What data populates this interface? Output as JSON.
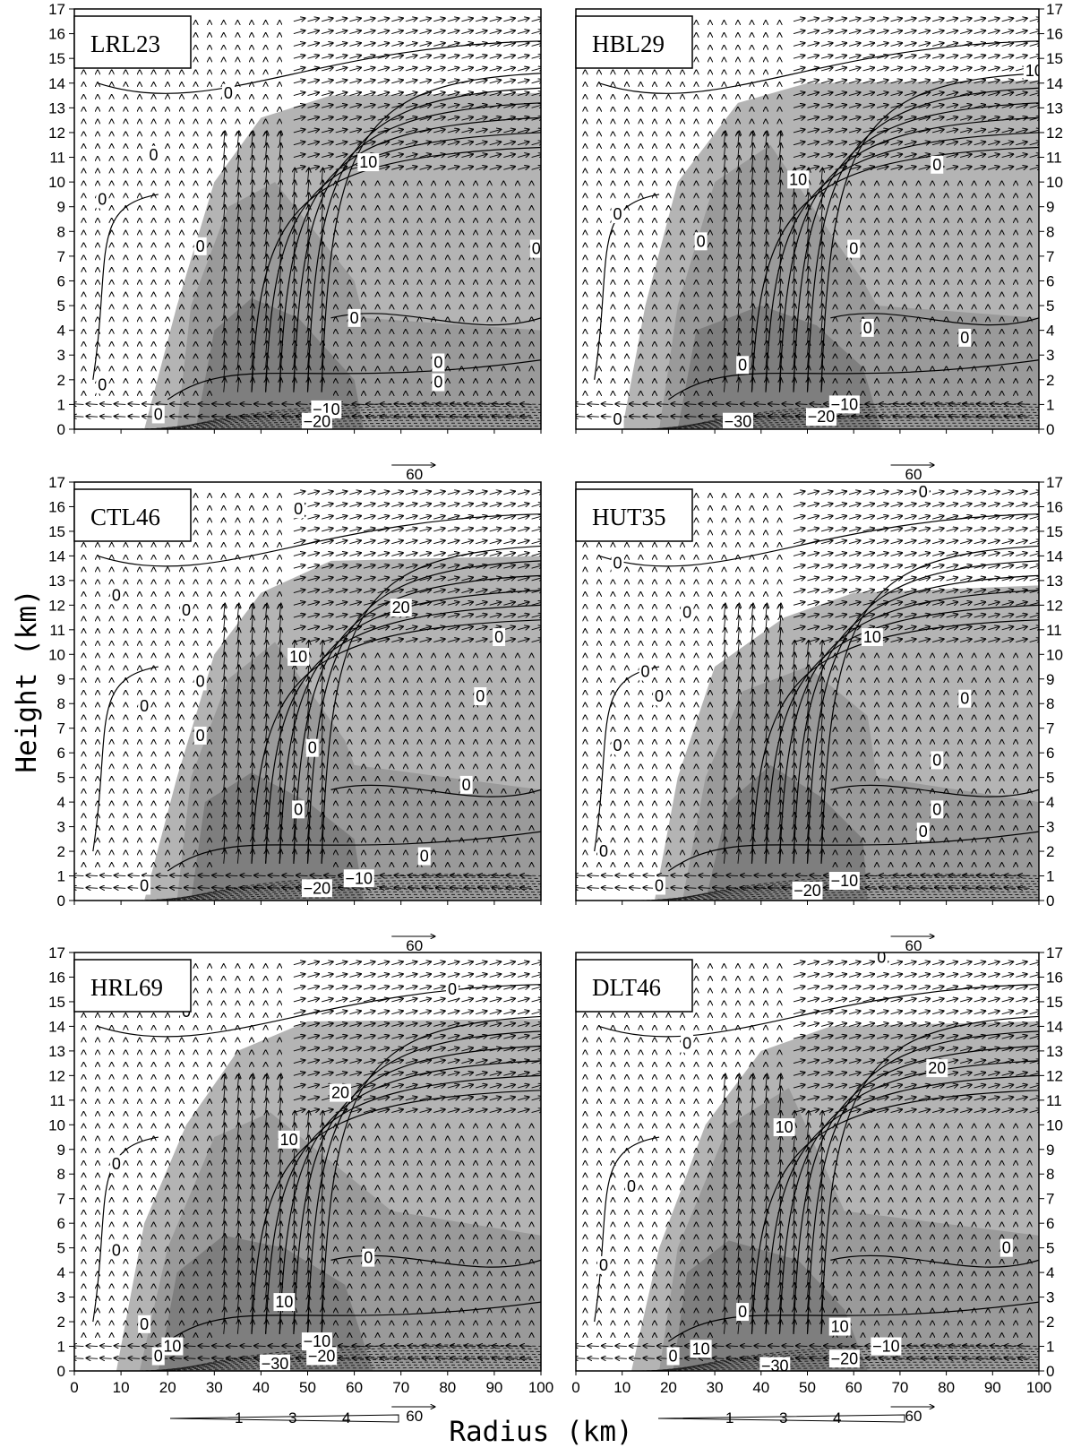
{
  "figure": {
    "xlabel": "Radius (km)",
    "ylabel": "Height (km)",
    "xticks": [
      0,
      10,
      20,
      30,
      40,
      50,
      60,
      70,
      80,
      90,
      100
    ],
    "yticks": [
      0,
      1,
      2,
      3,
      4,
      5,
      6,
      7,
      8,
      9,
      10,
      11,
      12,
      13,
      14,
      15,
      16,
      17
    ],
    "vector_reference": "60",
    "colorbar_ticks": [
      "1",
      "3",
      "4"
    ]
  },
  "chart_data": [
    {
      "type": "contour",
      "title": "LRL23",
      "xlim": [
        0,
        100
      ],
      "ylim": [
        0,
        17
      ],
      "shading": {
        "light_outer_edge_km": [
          [
            15,
            0
          ],
          [
            22,
            5
          ],
          [
            30,
            10
          ],
          [
            40,
            12.6
          ],
          [
            55,
            13.5
          ],
          [
            100,
            13.6
          ],
          [
            100,
            0
          ]
        ],
        "medium_core_km": [
          [
            22,
            0
          ],
          [
            25,
            5
          ],
          [
            33,
            9
          ],
          [
            43,
            10
          ],
          [
            60,
            6
          ],
          [
            62,
            4.5
          ],
          [
            100,
            4
          ],
          [
            100,
            0
          ]
        ],
        "dark_core_km": [
          [
            26,
            0
          ],
          [
            30,
            4
          ],
          [
            38,
            5.3
          ],
          [
            48,
            4.5
          ],
          [
            60,
            2
          ],
          [
            62,
            0
          ]
        ]
      },
      "contour_labels": [
        {
          "text": "0",
          "x": 33,
          "y": 13.6
        },
        {
          "text": "0",
          "x": 17,
          "y": 11.1
        },
        {
          "text": "0",
          "x": 6,
          "y": 9.3
        },
        {
          "text": "0",
          "x": 27,
          "y": 7.4
        },
        {
          "text": "0",
          "x": 99,
          "y": 7.3
        },
        {
          "text": "0",
          "x": 6,
          "y": 1.8
        },
        {
          "text": "0",
          "x": 18,
          "y": 0.6
        },
        {
          "text": "10",
          "x": 63,
          "y": 10.8
        },
        {
          "text": "0",
          "x": 60,
          "y": 4.5
        },
        {
          "text": "0",
          "x": 78,
          "y": 2.7
        },
        {
          "text": "0",
          "x": 78,
          "y": 1.9
        },
        {
          "text": "-10",
          "x": 54,
          "y": 0.8
        },
        {
          "text": "-20",
          "x": 52,
          "y": 0.3
        }
      ]
    },
    {
      "type": "contour",
      "title": "HBL29",
      "xlim": [
        0,
        100
      ],
      "ylim": [
        0,
        17
      ],
      "shading": {
        "light_outer_edge_km": [
          [
            10,
            0
          ],
          [
            15,
            5
          ],
          [
            22,
            10
          ],
          [
            35,
            13.2
          ],
          [
            50,
            14
          ],
          [
            100,
            14.1
          ],
          [
            100,
            0
          ]
        ],
        "medium_core_km": [
          [
            18,
            0
          ],
          [
            22,
            5
          ],
          [
            30,
            10
          ],
          [
            42,
            11.5
          ],
          [
            62,
            6
          ],
          [
            65,
            5
          ],
          [
            100,
            4.5
          ],
          [
            100,
            0
          ]
        ],
        "dark_core_km": [
          [
            22,
            0
          ],
          [
            26,
            4
          ],
          [
            40,
            5
          ],
          [
            52,
            4.2
          ],
          [
            62,
            2.5
          ],
          [
            66,
            0
          ]
        ]
      },
      "contour_labels": [
        {
          "text": "10",
          "x": 99,
          "y": 14.5
        },
        {
          "text": "10",
          "x": 48,
          "y": 10.1
        },
        {
          "text": "0",
          "x": 78,
          "y": 10.7
        },
        {
          "text": "0",
          "x": 9,
          "y": 8.7
        },
        {
          "text": "0",
          "x": 27,
          "y": 7.6
        },
        {
          "text": "0",
          "x": 60,
          "y": 7.3
        },
        {
          "text": "0",
          "x": 63,
          "y": 4.1
        },
        {
          "text": "0",
          "x": 84,
          "y": 3.7
        },
        {
          "text": "0",
          "x": 36,
          "y": 2.6
        },
        {
          "text": "0",
          "x": 9,
          "y": 0.4
        },
        {
          "text": "-10",
          "x": 58,
          "y": 1.0
        },
        {
          "text": "-20",
          "x": 53,
          "y": 0.5
        },
        {
          "text": "-30",
          "x": 35,
          "y": 0.3
        }
      ]
    },
    {
      "type": "contour",
      "title": "CTL46",
      "xlim": [
        0,
        100
      ],
      "ylim": [
        0,
        17
      ],
      "shading": {
        "light_outer_edge_km": [
          [
            15,
            0
          ],
          [
            22,
            5
          ],
          [
            30,
            10
          ],
          [
            40,
            12.5
          ],
          [
            55,
            13.8
          ],
          [
            100,
            14
          ],
          [
            100,
            0
          ]
        ],
        "medium_core_km": [
          [
            22,
            0
          ],
          [
            25,
            5
          ],
          [
            33,
            9
          ],
          [
            43,
            10.5
          ],
          [
            58,
            6.5
          ],
          [
            60,
            5.5
          ],
          [
            100,
            4.5
          ],
          [
            100,
            0
          ]
        ],
        "dark_core_km": [
          [
            25,
            0
          ],
          [
            28,
            4
          ],
          [
            38,
            5.2
          ],
          [
            50,
            4
          ],
          [
            60,
            2.5
          ],
          [
            62,
            0
          ]
        ]
      },
      "contour_labels": [
        {
          "text": "0",
          "x": 48,
          "y": 15.9
        },
        {
          "text": "0",
          "x": 9,
          "y": 12.4
        },
        {
          "text": "0",
          "x": 24,
          "y": 11.8
        },
        {
          "text": "20",
          "x": 70,
          "y": 11.9
        },
        {
          "text": "0",
          "x": 91,
          "y": 10.7
        },
        {
          "text": "10",
          "x": 48,
          "y": 9.9
        },
        {
          "text": "0",
          "x": 27,
          "y": 8.9
        },
        {
          "text": "0",
          "x": 87,
          "y": 8.3
        },
        {
          "text": "0",
          "x": 15,
          "y": 7.9
        },
        {
          "text": "0",
          "x": 27,
          "y": 6.7
        },
        {
          "text": "0",
          "x": 51,
          "y": 6.2
        },
        {
          "text": "0",
          "x": 84,
          "y": 4.7
        },
        {
          "text": "0",
          "x": 48,
          "y": 3.7
        },
        {
          "text": "0",
          "x": 75,
          "y": 1.8
        },
        {
          "text": "0",
          "x": 15,
          "y": 0.6
        },
        {
          "text": "-10",
          "x": 61,
          "y": 0.9
        },
        {
          "text": "-20",
          "x": 52,
          "y": 0.5
        }
      ]
    },
    {
      "type": "contour",
      "title": "HUT35",
      "xlim": [
        0,
        100
      ],
      "ylim": [
        0,
        17
      ],
      "shading": {
        "light_outer_edge_km": [
          [
            17,
            0
          ],
          [
            22,
            5
          ],
          [
            30,
            9.5
          ],
          [
            45,
            11.5
          ],
          [
            60,
            12.5
          ],
          [
            100,
            12.8
          ],
          [
            100,
            0
          ]
        ],
        "medium_core_km": [
          [
            23,
            0
          ],
          [
            28,
            5
          ],
          [
            36,
            8.5
          ],
          [
            50,
            9.5
          ],
          [
            63,
            7.5
          ],
          [
            65,
            5
          ],
          [
            100,
            4
          ],
          [
            100,
            0
          ]
        ],
        "dark_core_km": [
          [
            28,
            0
          ],
          [
            33,
            4
          ],
          [
            42,
            5.5
          ],
          [
            53,
            4.2
          ],
          [
            62,
            2.5
          ],
          [
            63,
            0
          ]
        ]
      },
      "contour_labels": [
        {
          "text": "0",
          "x": 75,
          "y": 16.6
        },
        {
          "text": "0",
          "x": 9,
          "y": 13.7
        },
        {
          "text": "0",
          "x": 24,
          "y": 11.7
        },
        {
          "text": "10",
          "x": 64,
          "y": 10.7
        },
        {
          "text": "0",
          "x": 15,
          "y": 9.3
        },
        {
          "text": "0",
          "x": 18,
          "y": 8.3
        },
        {
          "text": "0",
          "x": 84,
          "y": 8.2
        },
        {
          "text": "0",
          "x": 9,
          "y": 6.3
        },
        {
          "text": "0",
          "x": 78,
          "y": 5.7
        },
        {
          "text": "0",
          "x": 78,
          "y": 3.7
        },
        {
          "text": "0",
          "x": 75,
          "y": 2.8
        },
        {
          "text": "0",
          "x": 6,
          "y": 2.0
        },
        {
          "text": "0",
          "x": 18,
          "y": 0.6
        },
        {
          "text": "-10",
          "x": 58,
          "y": 0.8
        },
        {
          "text": "-20",
          "x": 50,
          "y": 0.4
        }
      ]
    },
    {
      "type": "contour",
      "title": "HRL69",
      "xlim": [
        0,
        100
      ],
      "ylim": [
        0,
        17
      ],
      "shading": {
        "light_outer_edge_km": [
          [
            9,
            0
          ],
          [
            15,
            6
          ],
          [
            24,
            10
          ],
          [
            35,
            13
          ],
          [
            50,
            14.2
          ],
          [
            100,
            14.3
          ],
          [
            100,
            0
          ]
        ],
        "medium_core_km": [
          [
            14,
            0
          ],
          [
            20,
            5
          ],
          [
            30,
            9.5
          ],
          [
            42,
            10.5
          ],
          [
            68,
            6.5
          ],
          [
            100,
            5.5
          ],
          [
            100,
            0
          ]
        ],
        "dark_core_km": [
          [
            18,
            0
          ],
          [
            22,
            4
          ],
          [
            32,
            5.5
          ],
          [
            45,
            5
          ],
          [
            58,
            3.5
          ],
          [
            64,
            0
          ]
        ]
      },
      "contour_labels": [
        {
          "text": "0",
          "x": 81,
          "y": 15.5
        },
        {
          "text": "0",
          "x": 24,
          "y": 14.6
        },
        {
          "text": "20",
          "x": 57,
          "y": 11.3
        },
        {
          "text": "10",
          "x": 46,
          "y": 9.4
        },
        {
          "text": "0",
          "x": 9,
          "y": 8.4
        },
        {
          "text": "0",
          "x": 9,
          "y": 4.9
        },
        {
          "text": "0",
          "x": 63,
          "y": 4.6
        },
        {
          "text": "10",
          "x": 45,
          "y": 2.8
        },
        {
          "text": "0",
          "x": 15,
          "y": 1.9
        },
        {
          "text": "10",
          "x": 21,
          "y": 1.0
        },
        {
          "text": "0",
          "x": 18,
          "y": 0.6
        },
        {
          "text": "-10",
          "x": 52,
          "y": 1.2
        },
        {
          "text": "-20",
          "x": 53,
          "y": 0.6
        },
        {
          "text": "-30",
          "x": 43,
          "y": 0.3
        }
      ]
    },
    {
      "type": "contour",
      "title": "DLT46",
      "xlim": [
        0,
        100
      ],
      "ylim": [
        0,
        17
      ],
      "shading": {
        "light_outer_edge_km": [
          [
            12,
            0
          ],
          [
            18,
            5
          ],
          [
            28,
            10
          ],
          [
            40,
            13
          ],
          [
            55,
            14
          ],
          [
            100,
            14.2
          ],
          [
            100,
            0
          ]
        ],
        "medium_core_km": [
          [
            18,
            0
          ],
          [
            22,
            5
          ],
          [
            33,
            10
          ],
          [
            46,
            11.5
          ],
          [
            58,
            6.5
          ],
          [
            100,
            5.5
          ],
          [
            100,
            0
          ]
        ],
        "dark_core_km": [
          [
            21,
            0
          ],
          [
            24,
            4
          ],
          [
            33,
            5.3
          ],
          [
            48,
            4.5
          ],
          [
            58,
            2.5
          ],
          [
            63,
            0
          ]
        ]
      },
      "contour_labels": [
        {
          "text": "0",
          "x": 66,
          "y": 16.8
        },
        {
          "text": "0",
          "x": 24,
          "y": 13.3
        },
        {
          "text": "20",
          "x": 78,
          "y": 12.3
        },
        {
          "text": "10",
          "x": 45,
          "y": 9.9
        },
        {
          "text": "0",
          "x": 12,
          "y": 7.5
        },
        {
          "text": "0",
          "x": 93,
          "y": 5.0
        },
        {
          "text": "0",
          "x": 6,
          "y": 4.3
        },
        {
          "text": "0",
          "x": 36,
          "y": 2.4
        },
        {
          "text": "10",
          "x": 57,
          "y": 1.8
        },
        {
          "text": "10",
          "x": 27,
          "y": 0.9
        },
        {
          "text": "0",
          "x": 21,
          "y": 0.6
        },
        {
          "text": "-10",
          "x": 67,
          "y": 1.0
        },
        {
          "text": "-20",
          "x": 58,
          "y": 0.5
        },
        {
          "text": "-30",
          "x": 43,
          "y": 0.2
        }
      ]
    }
  ]
}
